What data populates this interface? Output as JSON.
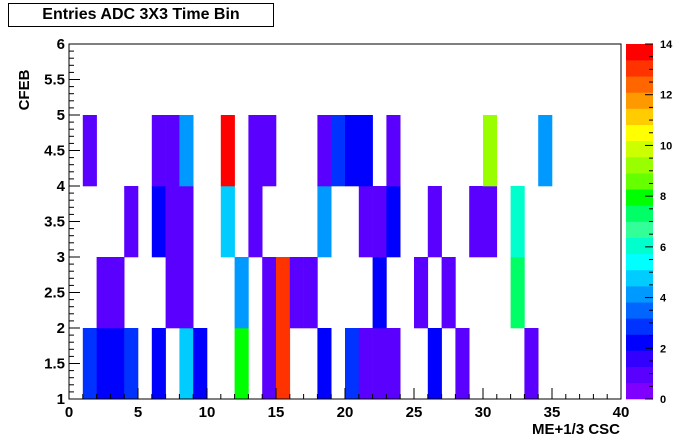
{
  "chart_data": {
    "type": "heatmap",
    "title": "Entries ADC 3X3 Time Bin",
    "xlabel": "ME+1/3 CSC",
    "ylabel": "CFEB",
    "xlim": [
      0,
      40
    ],
    "ylim": [
      1,
      6
    ],
    "zlim": [
      0,
      14
    ],
    "x_ticks": [
      0,
      5,
      10,
      15,
      20,
      25,
      30,
      35,
      40
    ],
    "y_ticks": [
      1,
      1.5,
      2,
      2.5,
      3,
      3.5,
      4,
      4.5,
      5,
      5.5,
      6
    ],
    "z_ticks": [
      0,
      2,
      4,
      6,
      8,
      10,
      12,
      14
    ],
    "x_bin_width": 1,
    "y_bin_height": 1,
    "palette": [
      "#8000ff",
      "#5a00ff",
      "#3300ff",
      "#0000ff",
      "#0033ff",
      "#0066ff",
      "#0099ff",
      "#00ccff",
      "#00ffff",
      "#00ffcc",
      "#33ff99",
      "#00ff66",
      "#00ff00",
      "#66ff00",
      "#99ff00",
      "#ccff00",
      "#ffff00",
      "#ffcc00",
      "#ff9900",
      "#ff6600",
      "#ff3300",
      "#ff0000"
    ],
    "cells": [
      {
        "x": 1,
        "y": 1,
        "z": 3
      },
      {
        "x": 1,
        "y": 4,
        "z": 1
      },
      {
        "x": 2,
        "y": 1,
        "z": 2
      },
      {
        "x": 2,
        "y": 2,
        "z": 1
      },
      {
        "x": 3,
        "y": 1,
        "z": 2
      },
      {
        "x": 3,
        "y": 2,
        "z": 1
      },
      {
        "x": 4,
        "y": 1,
        "z": 3
      },
      {
        "x": 4,
        "y": 3,
        "z": 1
      },
      {
        "x": 6,
        "y": 1,
        "z": 2
      },
      {
        "x": 6,
        "y": 3,
        "z": 2
      },
      {
        "x": 6,
        "y": 4,
        "z": 1
      },
      {
        "x": 7,
        "y": 2,
        "z": 1
      },
      {
        "x": 7,
        "y": 3,
        "z": 1
      },
      {
        "x": 7,
        "y": 4,
        "z": 1
      },
      {
        "x": 8,
        "y": 1,
        "z": 5
      },
      {
        "x": 8,
        "y": 2,
        "z": 1
      },
      {
        "x": 8,
        "y": 3,
        "z": 1
      },
      {
        "x": 8,
        "y": 4,
        "z": 4
      },
      {
        "x": 9,
        "y": 1,
        "z": 2
      },
      {
        "x": 11,
        "y": 3,
        "z": 5
      },
      {
        "x": 11,
        "y": 4,
        "z": 14
      },
      {
        "x": 12,
        "y": 1,
        "z": 8
      },
      {
        "x": 12,
        "y": 2,
        "z": 4
      },
      {
        "x": 13,
        "y": 3,
        "z": 1
      },
      {
        "x": 13,
        "y": 4,
        "z": 1
      },
      {
        "x": 14,
        "y": 1,
        "z": 1
      },
      {
        "x": 14,
        "y": 2,
        "z": 1
      },
      {
        "x": 14,
        "y": 4,
        "z": 1
      },
      {
        "x": 15,
        "y": 1,
        "z": 13
      },
      {
        "x": 15,
        "y": 2,
        "z": 13
      },
      {
        "x": 16,
        "y": 2,
        "z": 1
      },
      {
        "x": 17,
        "y": 2,
        "z": 1
      },
      {
        "x": 18,
        "y": 1,
        "z": 2
      },
      {
        "x": 18,
        "y": 3,
        "z": 4
      },
      {
        "x": 18,
        "y": 4,
        "z": 1
      },
      {
        "x": 19,
        "y": 4,
        "z": 3
      },
      {
        "x": 20,
        "y": 1,
        "z": 3
      },
      {
        "x": 20,
        "y": 4,
        "z": 2
      },
      {
        "x": 21,
        "y": 1,
        "z": 1
      },
      {
        "x": 21,
        "y": 3,
        "z": 1
      },
      {
        "x": 21,
        "y": 4,
        "z": 2
      },
      {
        "x": 22,
        "y": 1,
        "z": 1
      },
      {
        "x": 22,
        "y": 2,
        "z": 2
      },
      {
        "x": 22,
        "y": 3,
        "z": 1
      },
      {
        "x": 23,
        "y": 1,
        "z": 1
      },
      {
        "x": 23,
        "y": 3,
        "z": 2
      },
      {
        "x": 23,
        "y": 4,
        "z": 1
      },
      {
        "x": 25,
        "y": 2,
        "z": 1
      },
      {
        "x": 26,
        "y": 1,
        "z": 2
      },
      {
        "x": 26,
        "y": 3,
        "z": 1
      },
      {
        "x": 27,
        "y": 2,
        "z": 1
      },
      {
        "x": 28,
        "y": 1,
        "z": 1
      },
      {
        "x": 29,
        "y": 3,
        "z": 1
      },
      {
        "x": 30,
        "y": 3,
        "z": 1
      },
      {
        "x": 30,
        "y": 4,
        "z": 9
      },
      {
        "x": 32,
        "y": 2,
        "z": 7
      },
      {
        "x": 32,
        "y": 3,
        "z": 6
      },
      {
        "x": 33,
        "y": 1,
        "z": 1
      },
      {
        "x": 34,
        "y": 4,
        "z": 4
      }
    ]
  }
}
